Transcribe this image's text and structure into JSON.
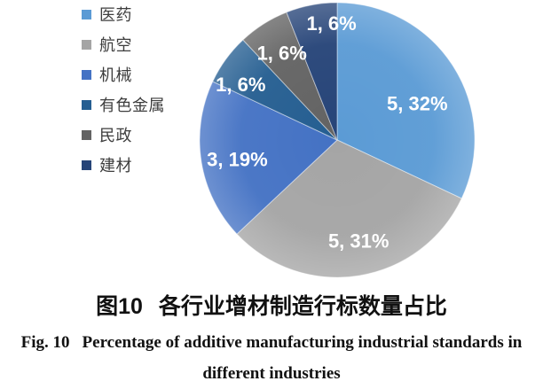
{
  "figure": {
    "caption_cn": {
      "fig_label": "图10",
      "text": "各行业增材制造行标数量占比"
    },
    "caption_en": {
      "fig_label": "Fig. 10",
      "line1": "Percentage of additive manufacturing industrial standards in",
      "line2": "different industries"
    }
  },
  "chart_data": {
    "type": "pie",
    "title": "图10 各行业增材制造行标数量占比",
    "title_en": "Fig. 10 Percentage of additive manufacturing industrial standards in different industries",
    "categories": [
      "医药",
      "航空",
      "机械",
      "有色金属",
      "民政",
      "建材"
    ],
    "values": [
      5,
      5,
      3,
      1,
      1,
      1
    ],
    "percents": [
      32,
      31,
      19,
      6,
      6,
      6
    ],
    "slice_labels": [
      "5, 32%",
      "5, 31%",
      "3, 19%",
      "1, 6%",
      "1, 6%",
      "1, 6%"
    ],
    "colors": [
      "#5B9BD5",
      "#A5A5A5",
      "#4472C4",
      "#255E91",
      "#636363",
      "#264478"
    ],
    "legend_position": "left",
    "start_angle_deg": 0,
    "direction": "clockwise",
    "slice_label_color": "#FFFFFF",
    "legend_text_color": "#3D3D3D"
  }
}
